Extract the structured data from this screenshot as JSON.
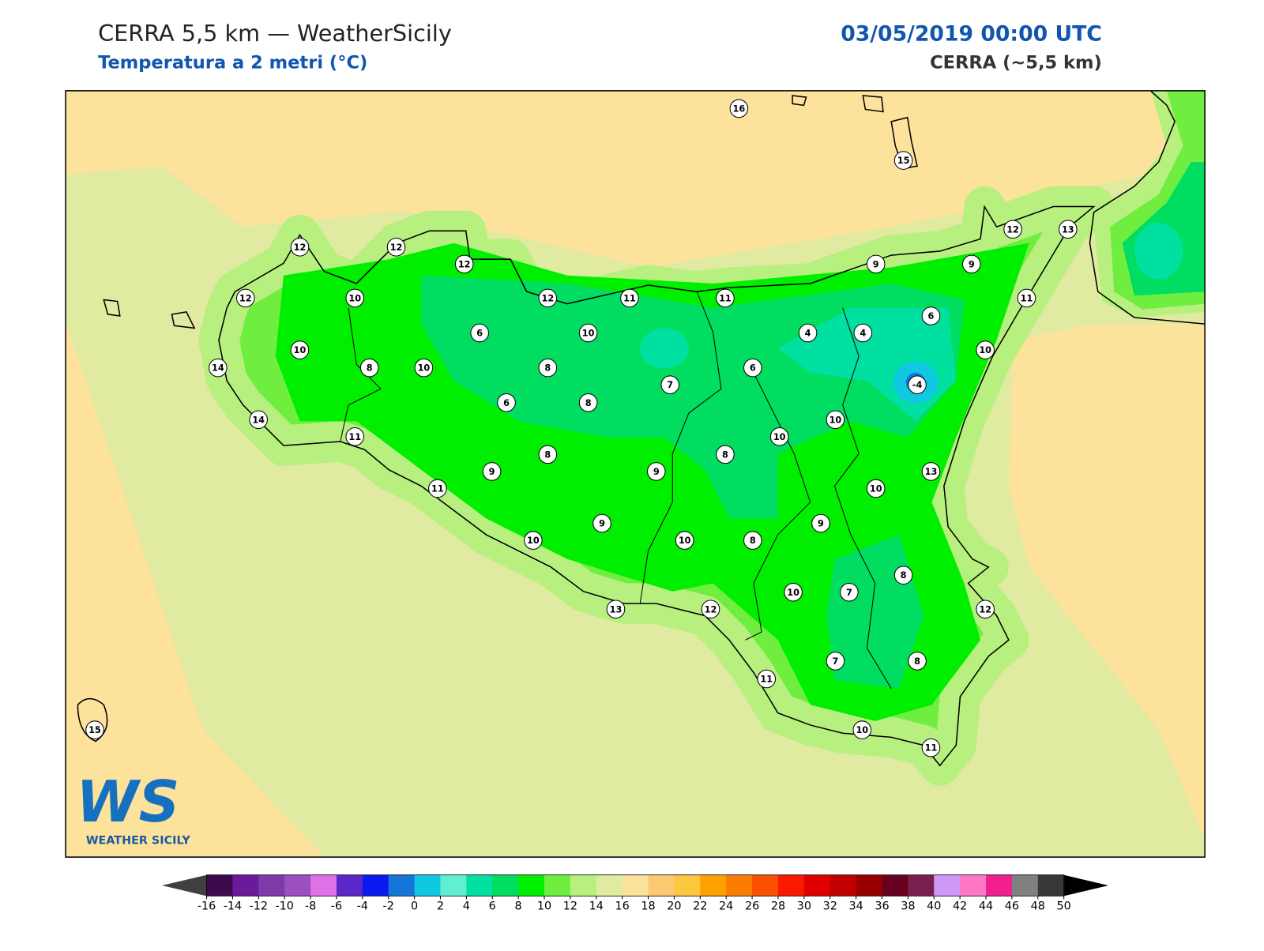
{
  "header": {
    "title": "CERRA 5,5 km — WeatherSicily",
    "subtitle": "Temperatura a 2 metri (°C)",
    "date": "03/05/2019 00:00 UTC",
    "model": "CERRA (~5,5 km)"
  },
  "logo": {
    "mark": "WS",
    "name": "WEATHER SICILY"
  },
  "stations": [
    16,
    15,
    12,
    13,
    12,
    12,
    12,
    9,
    9,
    12,
    10,
    12,
    11,
    11,
    11,
    6,
    6,
    10,
    4,
    4,
    10,
    10,
    14,
    8,
    10,
    8,
    6,
    -4,
    7,
    6,
    8,
    14,
    10,
    11,
    10,
    8,
    8,
    9,
    9,
    13,
    11,
    10,
    9,
    9,
    10,
    10,
    8,
    8,
    10,
    7,
    13,
    12,
    12,
    7,
    8,
    11,
    10,
    11,
    15
  ],
  "colorbar": {
    "ticks": [
      -16,
      -14,
      -12,
      -10,
      -8,
      -6,
      -4,
      -2,
      0,
      2,
      4,
      6,
      8,
      10,
      12,
      14,
      16,
      18,
      20,
      22,
      24,
      26,
      28,
      30,
      32,
      34,
      36,
      38,
      40,
      42,
      44,
      46,
      48,
      50
    ],
    "colors": [
      "#3d0a4f",
      "#6a1a9a",
      "#7d3aa8",
      "#9b4fc0",
      "#e070e8",
      "#5a28c8",
      "#0a1af0",
      "#1477d8",
      "#10c8e0",
      "#60f0d0",
      "#00e0a0",
      "#00dd60",
      "#00ee00",
      "#70ee40",
      "#b8f080",
      "#e0eaa0",
      "#fde29c",
      "#fcc870",
      "#fdc840",
      "#fda000",
      "#fb7c00",
      "#fb5000",
      "#fb1800",
      "#e00000",
      "#c00000",
      "#980000",
      "#6a0020",
      "#7a2050",
      "#d098f8",
      "#ff78c8",
      "#f02090",
      "#808080",
      "#383838"
    ],
    "under_color": "#404040",
    "over_color": "#000000"
  }
}
